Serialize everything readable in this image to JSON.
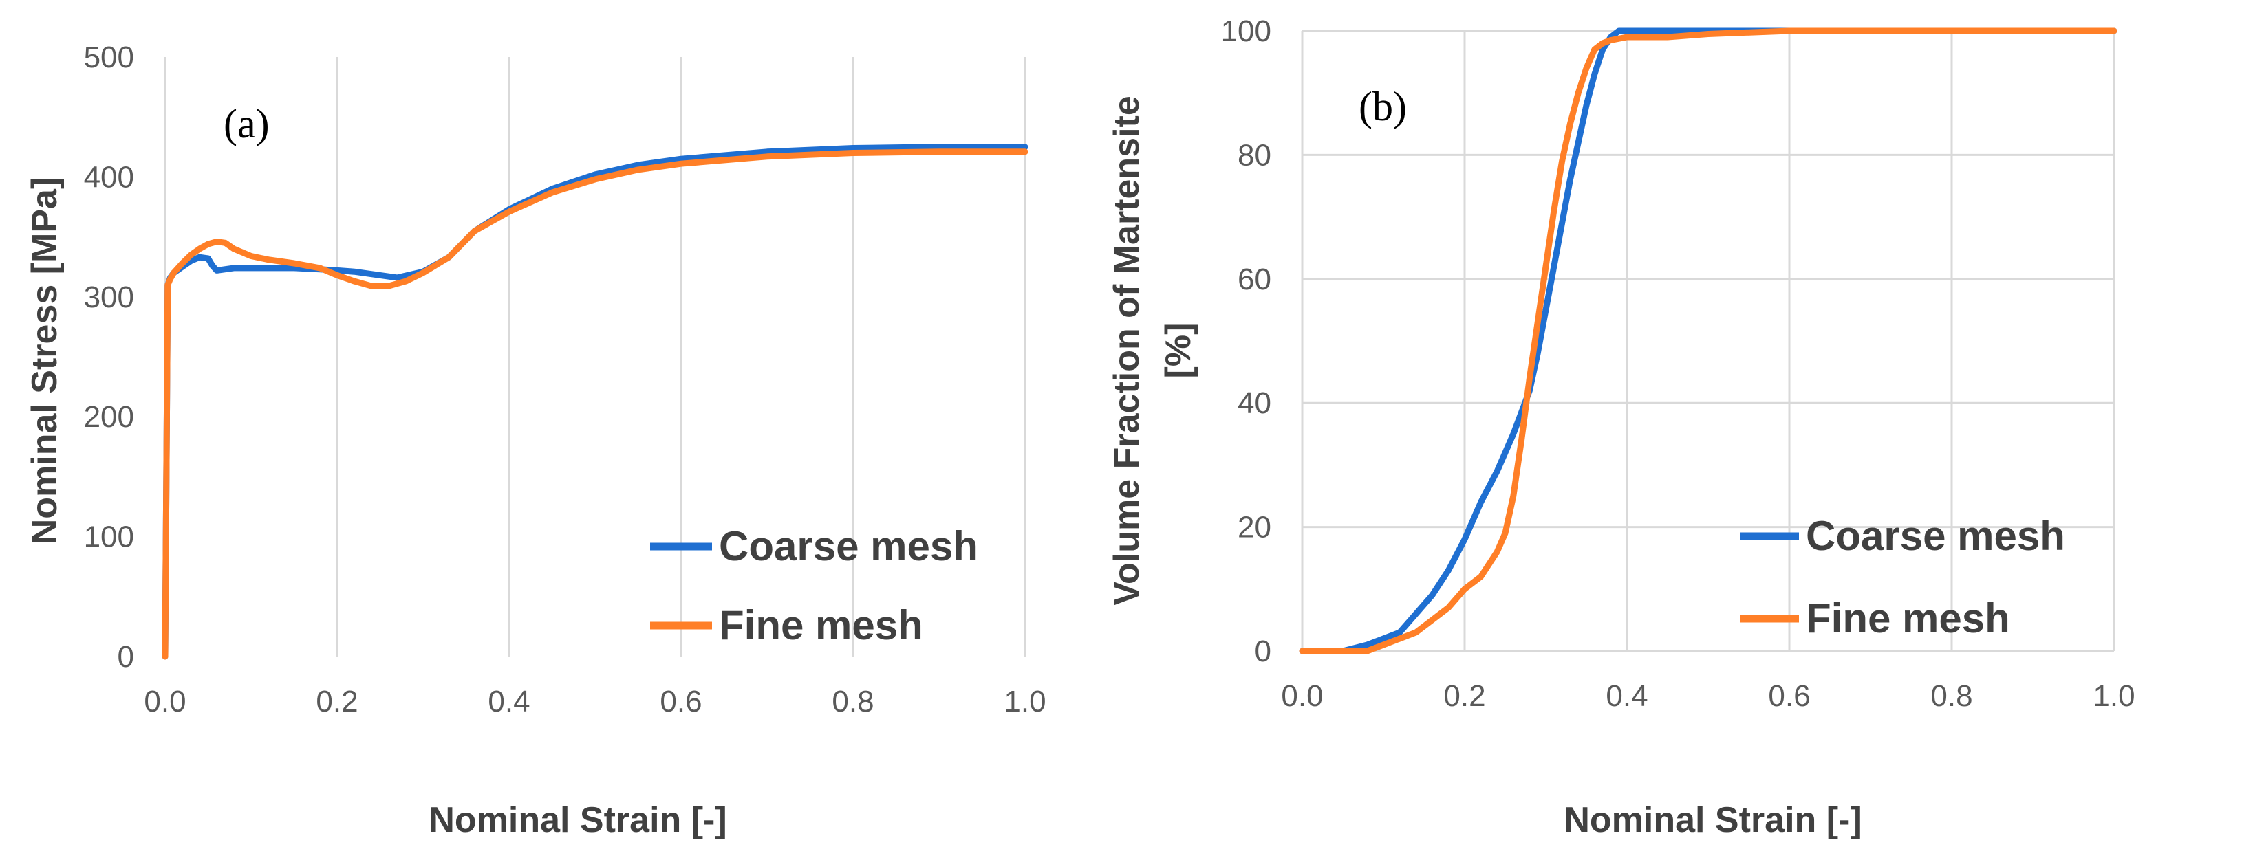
{
  "colors": {
    "coarse": "#1f6fd1",
    "fine": "#ff7f27"
  },
  "chart_data": [
    {
      "type": "line",
      "panel_label": "(a)",
      "xlabel": "Nominal Strain [-]",
      "ylabel": "Nominal Stress [MPa]",
      "xlim": [
        0.0,
        1.0
      ],
      "ylim": [
        0,
        500
      ],
      "xticks": [
        "0.0",
        "0.2",
        "0.4",
        "0.6",
        "0.8",
        "1.0"
      ],
      "yticks": [
        "0",
        "100",
        "200",
        "300",
        "400",
        "500"
      ],
      "grid": "vertical",
      "legend_position": "bottom-right",
      "series": [
        {
          "name": "Coarse mesh",
          "x": [
            0,
            0.003,
            0.006,
            0.01,
            0.02,
            0.03,
            0.04,
            0.05,
            0.055,
            0.06,
            0.07,
            0.08,
            0.1,
            0.12,
            0.15,
            0.18,
            0.2,
            0.22,
            0.25,
            0.27,
            0.3,
            0.33,
            0.36,
            0.4,
            0.45,
            0.5,
            0.55,
            0.6,
            0.7,
            0.8,
            0.9,
            1.0
          ],
          "y": [
            0,
            310,
            316,
            320,
            325,
            330,
            333,
            332,
            326,
            322,
            323,
            324,
            324,
            324,
            324,
            323,
            322,
            321,
            318,
            316,
            321,
            333,
            355,
            373,
            390,
            402,
            410,
            415,
            421,
            424,
            425,
            425
          ]
        },
        {
          "name": "Fine mesh",
          "x": [
            0,
            0.003,
            0.006,
            0.01,
            0.02,
            0.03,
            0.04,
            0.05,
            0.06,
            0.07,
            0.08,
            0.1,
            0.12,
            0.15,
            0.18,
            0.2,
            0.22,
            0.24,
            0.26,
            0.28,
            0.3,
            0.33,
            0.36,
            0.4,
            0.45,
            0.5,
            0.55,
            0.6,
            0.7,
            0.8,
            0.9,
            1.0
          ],
          "y": [
            0,
            310,
            315,
            320,
            328,
            335,
            340,
            344,
            346,
            345,
            340,
            334,
            331,
            328,
            324,
            318,
            313,
            309,
            309,
            313,
            320,
            333,
            355,
            371,
            387,
            398,
            406,
            411,
            417,
            420,
            421,
            421
          ]
        }
      ]
    },
    {
      "type": "line",
      "panel_label": "(b)",
      "xlabel": "Nominal Strain [-]",
      "ylabel_line1": "Volume Fraction of Martensite",
      "ylabel_line2": "[%]",
      "xlim": [
        0.0,
        1.0
      ],
      "ylim": [
        0,
        100
      ],
      "xticks": [
        "0.0",
        "0.2",
        "0.4",
        "0.6",
        "0.8",
        "1.0"
      ],
      "yticks": [
        "0",
        "20",
        "40",
        "60",
        "80",
        "100"
      ],
      "grid": "both",
      "legend_position": "bottom-right",
      "series": [
        {
          "name": "Coarse mesh",
          "x": [
            0,
            0.05,
            0.08,
            0.1,
            0.12,
            0.14,
            0.16,
            0.18,
            0.2,
            0.22,
            0.24,
            0.26,
            0.28,
            0.29,
            0.3,
            0.31,
            0.32,
            0.33,
            0.34,
            0.35,
            0.36,
            0.37,
            0.38,
            0.39,
            0.4,
            0.45,
            0.5,
            0.6,
            0.8,
            1.0
          ],
          "y": [
            0,
            0,
            1,
            2,
            3,
            6,
            9,
            13,
            18,
            24,
            29,
            35,
            42,
            48,
            55,
            62,
            69,
            76,
            82,
            88,
            93,
            97,
            99,
            100,
            100,
            100,
            100,
            100,
            100,
            100
          ]
        },
        {
          "name": "Fine mesh",
          "x": [
            0,
            0.08,
            0.1,
            0.12,
            0.14,
            0.16,
            0.18,
            0.2,
            0.22,
            0.24,
            0.25,
            0.26,
            0.27,
            0.28,
            0.29,
            0.3,
            0.31,
            0.32,
            0.33,
            0.34,
            0.35,
            0.36,
            0.37,
            0.38,
            0.4,
            0.45,
            0.5,
            0.6,
            0.8,
            1.0
          ],
          "y": [
            0,
            0,
            1,
            2,
            3,
            5,
            7,
            10,
            12,
            16,
            19,
            25,
            34,
            44,
            53,
            62,
            71,
            79,
            85,
            90,
            94,
            97,
            98,
            98.5,
            99,
            99,
            99.5,
            100,
            100,
            100
          ]
        }
      ]
    }
  ]
}
